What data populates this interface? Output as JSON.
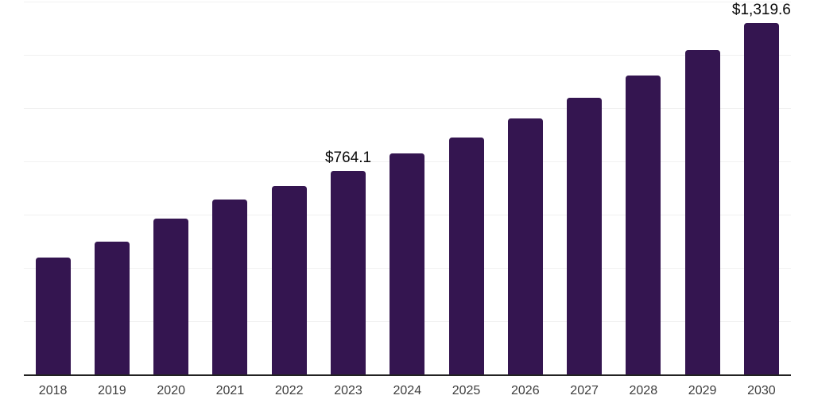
{
  "chart_data": {
    "type": "bar",
    "title": "",
    "xlabel": "",
    "ylabel": "",
    "categories": [
      "2018",
      "2019",
      "2020",
      "2021",
      "2022",
      "2023",
      "2024",
      "2025",
      "2026",
      "2027",
      "2028",
      "2029",
      "2030"
    ],
    "values": [
      441.5,
      501.0,
      588.0,
      657.5,
      710.0,
      764.1,
      830.0,
      891.5,
      962.0,
      1041.0,
      1125.0,
      1220.0,
      1319.6
    ],
    "data_labels": [
      "",
      "",
      "",
      "",
      "",
      "$764.1",
      "",
      "",
      "",
      "",
      "",
      "",
      "$1,319.6"
    ],
    "ylim": [
      0,
      1407
    ],
    "gridline_step": 200,
    "grid": true,
    "legend": "none",
    "colors": {
      "bar": "#341550",
      "axis_line": "#222222",
      "gridline": "#f1f1f1",
      "tick_label": "#3d3d3d",
      "data_label": "#0a0a0a"
    }
  }
}
